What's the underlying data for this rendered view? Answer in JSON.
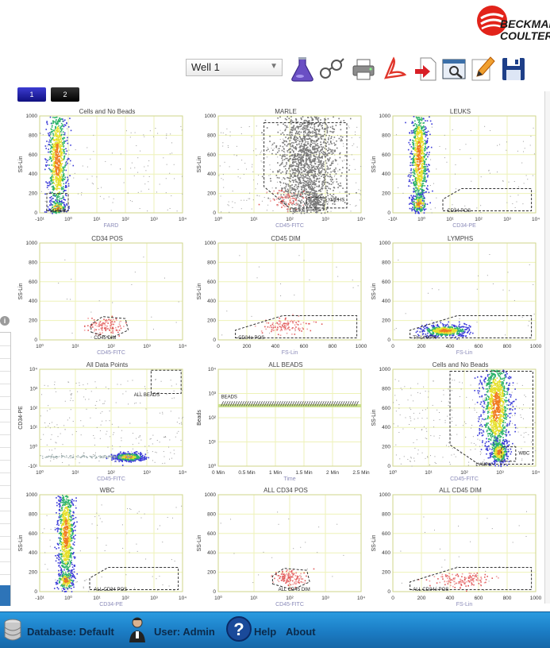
{
  "logo": {
    "line1": "BECKMAN",
    "line2": "COULTER"
  },
  "toolbar": {
    "well_select_value": "Well 1",
    "icons": [
      "flask-icon",
      "glasses-icon",
      "printer-icon",
      "pdf-icon",
      "export-icon",
      "preview-icon",
      "edit-icon",
      "save-icon"
    ]
  },
  "tabs": [
    {
      "label": "1"
    },
    {
      "label": "2"
    }
  ],
  "colors": {
    "accent": "#1b7cc4",
    "gate": "#333333",
    "grid": "#e8eea0"
  },
  "plots": [
    {
      "title": "Cells and No Beads",
      "xlabel": "FARD",
      "ylabel": "SS-Lin",
      "gates": [
        "CD45/B"
      ]
    },
    {
      "title": "MARLE",
      "xlabel": "CD45-FITC",
      "ylabel": "SS-Lin",
      "gates": [
        "LEUKS",
        "LYMPHS"
      ]
    },
    {
      "title": "LEUKS",
      "xlabel": "CD34-PE",
      "ylabel": "SS-Lin",
      "gates": [
        "CD34 POS"
      ]
    },
    {
      "title": "CD34 POS",
      "xlabel": "CD45-FITC",
      "ylabel": "SS-Lin",
      "gates": [
        "CD45 DIM"
      ]
    },
    {
      "title": "CD45 DIM",
      "xlabel": "FS-Lin",
      "ylabel": "SS-Lin",
      "gates": [
        "CD34e POS"
      ]
    },
    {
      "title": "LYMPHS",
      "xlabel": "FS-Lin",
      "ylabel": "SS-Lin",
      "gates": [
        "TY LYMPH"
      ]
    },
    {
      "title": "All Data Points",
      "xlabel": "CD45-FITC",
      "ylabel": "CD34-PE",
      "gates": [
        "ALL BEADS"
      ]
    },
    {
      "title": "ALL BEADS",
      "xlabel": "Time",
      "ylabel": "Beads",
      "gates": [
        "BEADS"
      ]
    },
    {
      "title": "Cells and No Beads",
      "xlabel": "CD45-FITC",
      "ylabel": "SS-Lin",
      "gates": [
        "LYMPH",
        "WBC"
      ]
    },
    {
      "title": "WBC",
      "xlabel": "CD34-PE",
      "ylabel": "SS-Lin",
      "gates": [
        "ALL CD34 POS"
      ]
    },
    {
      "title": "ALL CD34 POS",
      "xlabel": "CD45-FITC",
      "ylabel": "SS-Lin",
      "gates": [
        "ALL CD45 DIM"
      ]
    },
    {
      "title": "ALL CD45 DIM",
      "xlabel": "FS-Lin",
      "ylabel": "SS-Lin",
      "gates": [
        "ALL CD34e POS"
      ]
    }
  ],
  "axis_ticks": {
    "lin_y": [
      "0",
      "200",
      "400",
      "600",
      "800",
      "1000"
    ],
    "log_x": [
      "10⁰",
      "10¹",
      "10²",
      "10³",
      "10⁴"
    ],
    "logneg_x": [
      "-10¹",
      "10⁰",
      "10¹",
      "10²",
      "10³",
      "10⁴"
    ],
    "lin_x": [
      "0",
      "200",
      "400",
      "600",
      "800",
      "1000"
    ],
    "log_y": [
      "10⁰",
      "10¹",
      "10²",
      "10³",
      "10⁴"
    ],
    "logneg_y": [
      "-10¹",
      "10⁰",
      "10¹",
      "10²",
      "10³",
      "10⁴"
    ],
    "time_x": [
      "0 Min",
      "0.5 Min",
      "1 Min",
      "1.5 Min",
      "2 Min",
      "2.5 Min"
    ]
  },
  "status": {
    "database": "Database: Default",
    "user": "User: Admin",
    "help": "Help",
    "about": "About"
  }
}
